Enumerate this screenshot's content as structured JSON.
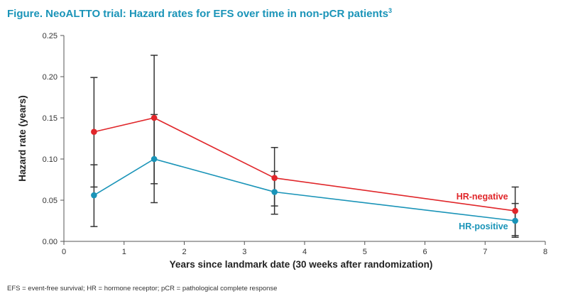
{
  "title": {
    "text": "Figure. NeoALTTO trial: Hazard rates for EFS over time in non-pCR patients",
    "superscript": "3"
  },
  "footnote": "EFS = event-free survival; HR = hormone receptor; pCR = pathological complete response",
  "colors": {
    "title": "#1a94b8",
    "hr_negative": "#e0262a",
    "hr_positive": "#1a94b8",
    "error_bar": "#333333",
    "axis": "#555555"
  },
  "chart_data": {
    "type": "line",
    "xlabel": "Years since landmark date (30 weeks after randomization)",
    "ylabel": "Hazard rate (years)",
    "xlim": [
      0,
      8
    ],
    "ylim": [
      0,
      0.25
    ],
    "xticks": [
      0,
      1,
      2,
      3,
      4,
      5,
      6,
      7,
      8
    ],
    "yticks": [
      0.0,
      0.05,
      0.1,
      0.15,
      0.2,
      0.25
    ],
    "ytick_labels": [
      "0.00",
      "0.05",
      "0.10",
      "0.15",
      "0.20",
      "0.25"
    ],
    "grid": false,
    "legend": "direct labels near series ends",
    "series": [
      {
        "name": "HR-negative",
        "color": "#e0262a",
        "x": [
          0.5,
          1.5,
          3.5,
          7.5
        ],
        "y": [
          0.133,
          0.15,
          0.077,
          0.037
        ],
        "ci_lower": [
          0.066,
          0.07,
          0.043,
          0.007
        ],
        "ci_upper": [
          0.199,
          0.226,
          0.114,
          0.066
        ]
      },
      {
        "name": "HR-positive",
        "color": "#1a94b8",
        "x": [
          0.5,
          1.5,
          3.5,
          7.5
        ],
        "y": [
          0.056,
          0.1,
          0.06,
          0.025
        ],
        "ci_lower": [
          0.018,
          0.047,
          0.033,
          0.005
        ],
        "ci_upper": [
          0.093,
          0.154,
          0.085,
          0.046
        ]
      }
    ]
  }
}
